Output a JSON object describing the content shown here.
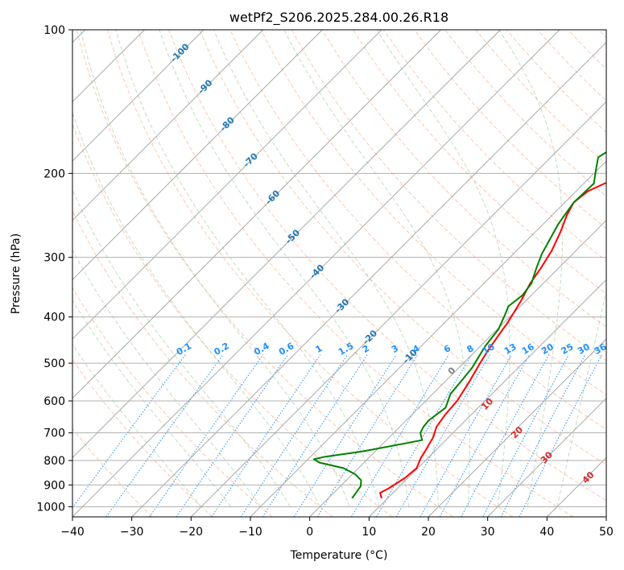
{
  "chart_data": {
    "type": "line",
    "title": "wetPf2_S206.2025.284.00.26.R18",
    "xlabel": "Temperature (°C)",
    "ylabel": "Pressure (hPa)",
    "xlim": [
      -40,
      50
    ],
    "ylim": [
      1050,
      100
    ],
    "x_ticks": [
      -40,
      -30,
      -20,
      -10,
      0,
      10,
      20,
      30,
      40,
      50
    ],
    "x_tick_labels": [
      "−40",
      "−30",
      "−20",
      "−10",
      "0",
      "10",
      "20",
      "30",
      "40",
      "50"
    ],
    "y_ticks": [
      100,
      200,
      300,
      400,
      500,
      600,
      700,
      800,
      900,
      1000
    ],
    "y_tick_labels": [
      "100",
      "200",
      "300",
      "400",
      "500",
      "600",
      "700",
      "800",
      "900",
      "1000"
    ],
    "colors": {
      "temperature": "#ff0000",
      "dewpoint": "#008000",
      "isotherm": "#a0a0a0",
      "dry_adiabat": "#ffa07a",
      "moist_adiabat": "#90c090",
      "mixing_ratio": "#1e90ff",
      "dry_label": "#d62728",
      "isotherm_label": "#1f77b4"
    },
    "series": [
      {
        "name": "Temperature",
        "color": "#ff0000",
        "points": [
          [
            9.0,
            960
          ],
          [
            7.8,
            935
          ],
          [
            8.5,
            915
          ],
          [
            9.5,
            870
          ],
          [
            9.8,
            830
          ],
          [
            8.8,
            790
          ],
          [
            8.3,
            760
          ],
          [
            7.4,
            715
          ],
          [
            6.2,
            680
          ],
          [
            5.6,
            640
          ],
          [
            5.3,
            600
          ],
          [
            4.2,
            550
          ],
          [
            2.8,
            500
          ],
          [
            2.0,
            470
          ],
          [
            1.3,
            440
          ],
          [
            0.6,
            410
          ],
          [
            -0.8,
            370
          ],
          [
            -2.2,
            340
          ],
          [
            -3.0,
            315
          ],
          [
            -4.1,
            290
          ],
          [
            -5.8,
            265
          ],
          [
            -7.5,
            245
          ],
          [
            -8.5,
            230
          ],
          [
            -8.0,
            218
          ],
          [
            -6.5,
            210
          ],
          [
            -3.0,
            200
          ],
          [
            0.5,
            190
          ],
          [
            4.5,
            175
          ],
          [
            8.0,
            160
          ],
          [
            11.0,
            145
          ],
          [
            13.0,
            135
          ],
          [
            15.0,
            125
          ],
          [
            16.5,
            115
          ],
          [
            18.0,
            108
          ],
          [
            20.5,
            100
          ]
        ]
      },
      {
        "name": "Dewpoint",
        "color": "#008000",
        "points": [
          [
            4.0,
            960
          ],
          [
            3.7,
            930
          ],
          [
            3.4,
            905
          ],
          [
            2.5,
            880
          ],
          [
            0.5,
            855
          ],
          [
            -2.5,
            830
          ],
          [
            -7.5,
            808
          ],
          [
            -9.0,
            795
          ],
          [
            -7.5,
            785
          ],
          [
            -2.0,
            765
          ],
          [
            6.0,
            725
          ],
          [
            4.5,
            700
          ],
          [
            4.0,
            680
          ],
          [
            3.8,
            660
          ],
          [
            4.5,
            620
          ],
          [
            3.0,
            580
          ],
          [
            2.6,
            540
          ],
          [
            2.2,
            510
          ],
          [
            1.5,
            485
          ],
          [
            0.8,
            460
          ],
          [
            0.2,
            425
          ],
          [
            -1.2,
            395
          ],
          [
            -2.0,
            380
          ],
          [
            -1.5,
            360
          ],
          [
            -2.0,
            340
          ],
          [
            -3.8,
            315
          ],
          [
            -5.2,
            295
          ],
          [
            -7.5,
            255
          ],
          [
            -8.5,
            230
          ],
          [
            -8.3,
            210
          ],
          [
            -10.5,
            195
          ],
          [
            -12.0,
            185
          ],
          [
            -10.8,
            175
          ],
          [
            -9.0,
            160
          ],
          [
            -6.0,
            145
          ],
          [
            -3.5,
            130
          ],
          [
            -0.5,
            120
          ],
          [
            1.5,
            110
          ],
          [
            3.0,
            100
          ]
        ]
      }
    ],
    "dry_adiabat_labels": [
      "0",
      "10",
      "20",
      "30",
      "40"
    ],
    "isotherm_labels": [
      "-100",
      "-90",
      "-80",
      "-70",
      "-60",
      "-50",
      "-40",
      "-30",
      "-20",
      "-10"
    ],
    "mixing_ratio_labels": [
      "0.1",
      "0.2",
      "0.4",
      "0.6",
      "1",
      "1.5",
      "2",
      "3",
      "4",
      "6",
      "8",
      "10",
      "13",
      "16",
      "20",
      "25",
      "30",
      "36"
    ]
  }
}
